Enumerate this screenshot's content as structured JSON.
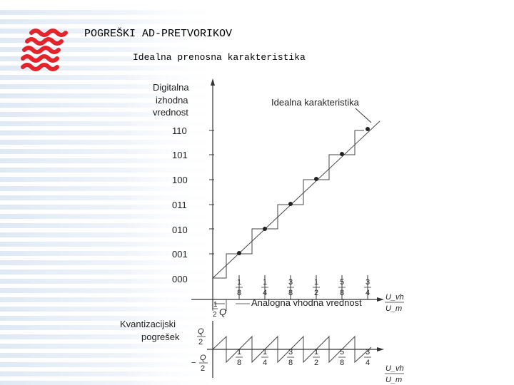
{
  "slide": {
    "title": "POGREŠKI AD-PRETVORIKOV",
    "subtitle": "Idealna prenosna karakteristika"
  },
  "figure": {
    "y_axis_label": [
      "Digitalna",
      "izhodna",
      "vrednost"
    ],
    "ideal_label": "Idealna karakteristika",
    "codes": [
      "000",
      "001",
      "010",
      "011",
      "100",
      "101",
      "110"
    ],
    "x_ticks": [
      {
        "num": "1",
        "den": "8"
      },
      {
        "num": "1",
        "den": "4"
      },
      {
        "num": "3",
        "den": "8"
      },
      {
        "num": "1",
        "den": "2"
      },
      {
        "num": "5",
        "den": "8"
      },
      {
        "num": "3",
        "den": "4"
      }
    ],
    "x_axis_label": "Analogna vhodna vrednost",
    "x_axis_unit_top": "U_vh",
    "x_axis_unit_bottom": "U_m",
    "half_q": {
      "num": "1",
      "den": "2",
      "sym": "Q"
    },
    "error_label": [
      "Kvantizacijski",
      "pogrešek"
    ],
    "error_pos": {
      "num": "Q",
      "den": "2"
    },
    "error_neg": {
      "sign": "−",
      "num": "Q",
      "den": "2"
    }
  },
  "colors": {
    "logo": "#e3242b",
    "stripe": "#e6eef7"
  }
}
